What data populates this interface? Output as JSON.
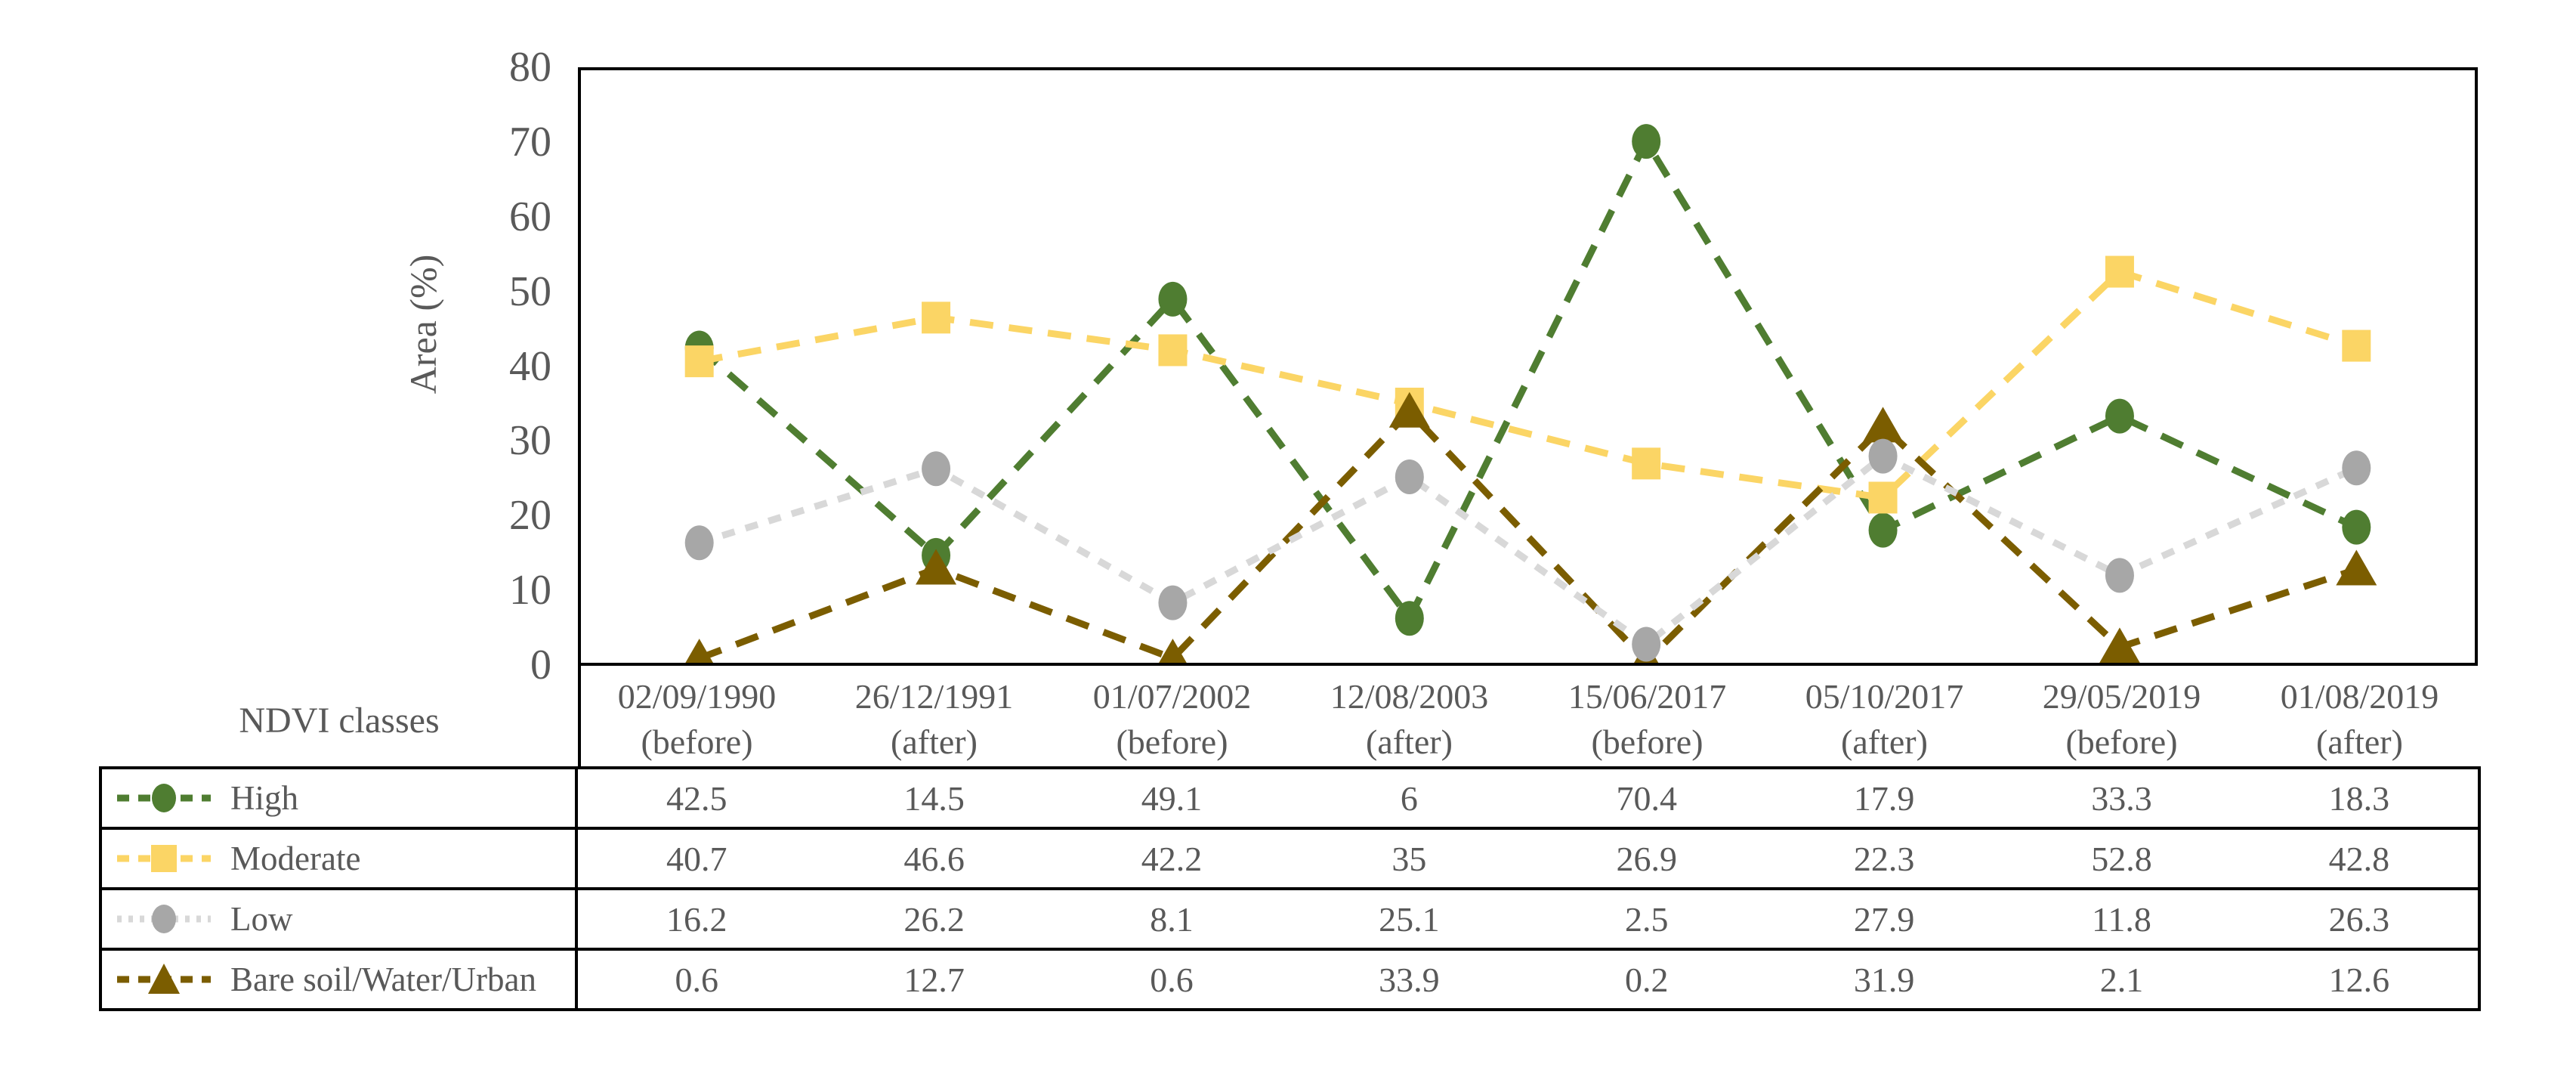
{
  "chart_data": {
    "type": "line",
    "ylabel": "Area (%)",
    "ylim": [
      0,
      80
    ],
    "yticks": [
      "0",
      "10",
      "20",
      "30",
      "40",
      "50",
      "60",
      "70",
      "80"
    ],
    "grid": false,
    "legend_position": "table-left",
    "categories": [
      {
        "date": "02/09/1990",
        "phase": "(before)"
      },
      {
        "date": "26/12/1991",
        "phase": "(after)"
      },
      {
        "date": "01/07/2002",
        "phase": "(before)"
      },
      {
        "date": "12/08/2003",
        "phase": "(after)"
      },
      {
        "date": "15/06/2017",
        "phase": "(before)"
      },
      {
        "date": "05/10/2017",
        "phase": "(after)"
      },
      {
        "date": "29/05/2019",
        "phase": "(before)"
      },
      {
        "date": "01/08/2019",
        "phase": "(after)"
      }
    ],
    "series": [
      {
        "name": "High",
        "marker": "circle",
        "dash": "dashed",
        "color": "#4f7d31",
        "line_color": "#4f7d31",
        "values": [
          42.5,
          14.5,
          49.1,
          6,
          70.4,
          17.9,
          33.3,
          18.3
        ]
      },
      {
        "name": "Moderate",
        "marker": "square",
        "dash": "dashed",
        "color": "#fbd565",
        "line_color": "#fbd565",
        "values": [
          40.7,
          46.6,
          42.2,
          35,
          26.9,
          22.3,
          52.8,
          42.8
        ]
      },
      {
        "name": "Low",
        "marker": "circle",
        "dash": "dotted",
        "color": "#a7a7a7",
        "line_color": "#d8d8d8",
        "values": [
          16.2,
          26.2,
          8.1,
          25.1,
          2.5,
          27.9,
          11.8,
          26.3
        ]
      },
      {
        "name": "Bare soil/Water/Urban",
        "marker": "triangle",
        "dash": "dashed",
        "color": "#7b5d00",
        "line_color": "#7b5d00",
        "values": [
          0.6,
          12.7,
          0.6,
          33.9,
          0.2,
          31.9,
          2.1,
          12.6
        ]
      }
    ]
  },
  "table": {
    "classes_label": "NDVI classes"
  },
  "colors": {
    "axis": "#000000",
    "text": "#595959",
    "background": "#ffffff"
  }
}
